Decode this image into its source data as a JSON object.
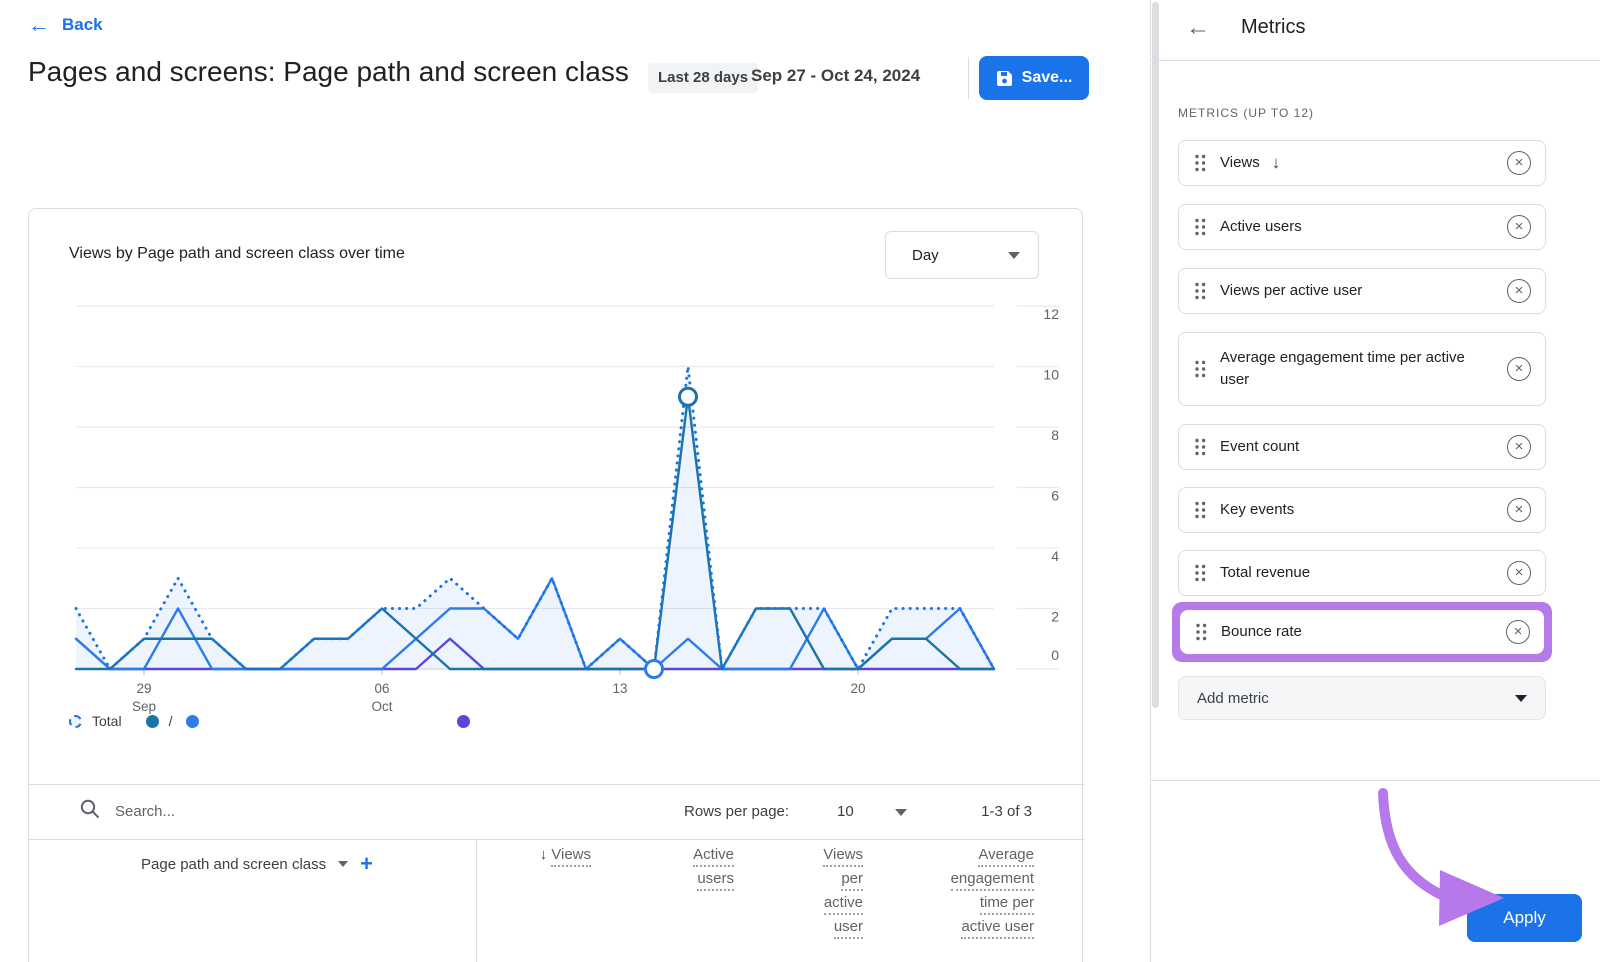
{
  "header": {
    "back_label": "Back",
    "title": "Pages and screens: Page path and screen class",
    "date_chip": "Last 28 days",
    "date_range": "Sep 27 - Oct 24, 2024",
    "save_label": "Save..."
  },
  "chart": {
    "title": "Views by Page path and screen class over time",
    "interval": "Day",
    "legend": {
      "total": "Total",
      "series1": "/",
      "series2": "",
      "series3": ""
    }
  },
  "chart_data": {
    "type": "line",
    "title": "Views by Page path and screen class over time",
    "x": [
      "Sep 27",
      "Sep 28",
      "Sep 29",
      "Sep 30",
      "Oct 1",
      "Oct 2",
      "Oct 3",
      "Oct 4",
      "Oct 5",
      "Oct 6",
      "Oct 7",
      "Oct 8",
      "Oct 9",
      "Oct 10",
      "Oct 11",
      "Oct 12",
      "Oct 13",
      "Oct 14",
      "Oct 15",
      "Oct 16",
      "Oct 17",
      "Oct 18",
      "Oct 19",
      "Oct 20",
      "Oct 21",
      "Oct 22",
      "Oct 23",
      "Oct 24"
    ],
    "x_ticks": [
      {
        "index": 2,
        "line1": "29",
        "line2": "Sep"
      },
      {
        "index": 9,
        "line1": "06",
        "line2": "Oct"
      },
      {
        "index": 16,
        "line1": "13",
        "line2": ""
      },
      {
        "index": 23,
        "line1": "20",
        "line2": ""
      }
    ],
    "ylim": [
      0,
      12
    ],
    "y_ticks": [
      0,
      2,
      4,
      6,
      8,
      10,
      12
    ],
    "grid": true,
    "legend_position": "bottom-left",
    "series": [
      {
        "name": "Total",
        "style": "dotted",
        "color": "#1a73e8",
        "fill": "rgba(26,115,232,0.08)",
        "values": [
          2,
          0,
          1,
          3,
          1,
          0,
          0,
          1,
          1,
          2,
          2,
          3,
          2,
          1,
          3,
          0,
          1,
          0,
          10,
          0,
          2,
          2,
          2,
          0,
          2,
          2,
          2,
          0
        ]
      },
      {
        "name": "/",
        "style": "solid",
        "color": "#1b74a8",
        "values": [
          0,
          0,
          1,
          1,
          1,
          0,
          0,
          1,
          1,
          2,
          1,
          0,
          0,
          0,
          0,
          0,
          0,
          0,
          9,
          0,
          2,
          2,
          0,
          0,
          1,
          1,
          0,
          0
        ],
        "marker": {
          "index": 18
        }
      },
      {
        "name": "",
        "style": "solid",
        "color": "#2d7ce8",
        "values": [
          1,
          0,
          0,
          2,
          0,
          0,
          0,
          0,
          0,
          0,
          1,
          2,
          2,
          1,
          3,
          0,
          1,
          0,
          1,
          0,
          0,
          0,
          2,
          0,
          1,
          1,
          2,
          0
        ],
        "marker": {
          "index": 17
        }
      },
      {
        "name": "",
        "style": "solid",
        "color": "#5b45e0",
        "values": [
          1,
          0,
          0,
          0,
          0,
          0,
          0,
          0,
          0,
          0,
          0,
          1,
          0,
          0,
          0,
          0,
          0,
          0,
          0,
          0,
          0,
          0,
          0,
          0,
          0,
          0,
          0,
          0
        ]
      }
    ]
  },
  "table": {
    "search_placeholder": "Search...",
    "rows_per_page_label": "Rows per page:",
    "rows_per_page_value": "10",
    "range_label": "1-3 of 3",
    "dimension_header": "Page path and screen class",
    "columns": [
      {
        "lines": [
          "Views"
        ],
        "sorted": true
      },
      {
        "lines": [
          "Active",
          "users"
        ],
        "sorted": false
      },
      {
        "lines": [
          "Views",
          "per",
          "active",
          "user"
        ],
        "sorted": false
      },
      {
        "lines": [
          "Average",
          "engagement",
          "time per",
          "active user"
        ],
        "sorted": false
      }
    ]
  },
  "panel": {
    "title": "Metrics",
    "section_label": "METRICS (UP TO 12)",
    "items": [
      {
        "label": "Views",
        "sorted": true,
        "highlighted": false
      },
      {
        "label": "Active users",
        "sorted": false,
        "highlighted": false
      },
      {
        "label": "Views per active user",
        "sorted": false,
        "highlighted": false
      },
      {
        "label": "Average engagement time per active user",
        "sorted": false,
        "highlighted": false
      },
      {
        "label": "Event count",
        "sorted": false,
        "highlighted": false
      },
      {
        "label": "Key events",
        "sorted": false,
        "highlighted": false
      },
      {
        "label": "Total revenue",
        "sorted": false,
        "highlighted": false
      },
      {
        "label": "Bounce rate",
        "sorted": false,
        "highlighted": true
      }
    ],
    "add_metric_label": "Add metric",
    "apply_label": "Apply",
    "highlight_color": "#b57be8",
    "arrow_color": "#b678ea"
  },
  "colors": {
    "accent_blue": "#1a73e8",
    "border": "#dadce0",
    "text_dark": "#202124",
    "text_gray": "#5f6368"
  }
}
